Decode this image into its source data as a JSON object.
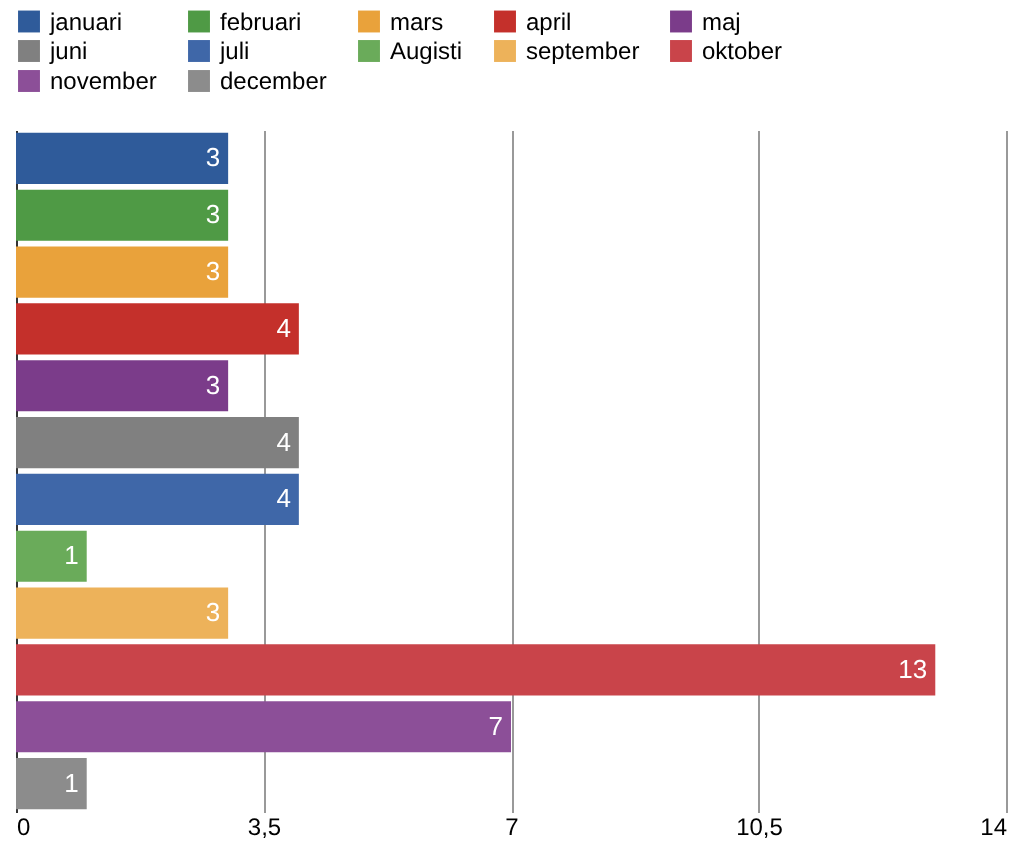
{
  "chart_data": {
    "type": "bar",
    "orientation": "horizontal",
    "categories": [
      null,
      null,
      null,
      null,
      null,
      null,
      null,
      null,
      null,
      null,
      null,
      null
    ],
    "series": [
      {
        "name": "januari",
        "color": "#2f5b9a",
        "values": [
          3,
          null,
          null,
          null,
          null,
          null,
          null,
          null,
          null,
          null,
          null,
          null
        ]
      },
      {
        "name": "februari",
        "color": "#4f9a45",
        "values": [
          null,
          3,
          null,
          null,
          null,
          null,
          null,
          null,
          null,
          null,
          null,
          null
        ]
      },
      {
        "name": "mars",
        "color": "#e9a23b",
        "values": [
          null,
          null,
          3,
          null,
          null,
          null,
          null,
          null,
          null,
          null,
          null,
          null
        ]
      },
      {
        "name": "april",
        "color": "#c4302b",
        "values": [
          null,
          null,
          null,
          4,
          null,
          null,
          null,
          null,
          null,
          null,
          null,
          null
        ]
      },
      {
        "name": "maj",
        "color": "#7b3c8a",
        "values": [
          null,
          null,
          null,
          null,
          3,
          null,
          null,
          null,
          null,
          null,
          null,
          null
        ]
      },
      {
        "name": "juni",
        "color": "#808080",
        "values": [
          null,
          null,
          null,
          null,
          null,
          4,
          null,
          null,
          null,
          null,
          null,
          null
        ]
      },
      {
        "name": "juli",
        "color": "#3f67a8",
        "values": [
          null,
          null,
          null,
          null,
          null,
          null,
          4,
          null,
          null,
          null,
          null,
          null
        ]
      },
      {
        "name": "Augisti",
        "color": "#6aab5a",
        "values": [
          null,
          null,
          null,
          null,
          null,
          null,
          null,
          1,
          null,
          null,
          null,
          null
        ]
      },
      {
        "name": "september",
        "color": "#edb25a",
        "values": [
          null,
          null,
          null,
          null,
          null,
          null,
          null,
          null,
          3,
          null,
          null,
          null
        ]
      },
      {
        "name": "oktober",
        "color": "#c9444a",
        "values": [
          null,
          null,
          null,
          null,
          null,
          null,
          null,
          null,
          null,
          13,
          null,
          null
        ]
      },
      {
        "name": "november",
        "color": "#8c4f98",
        "values": [
          null,
          null,
          null,
          null,
          null,
          null,
          null,
          null,
          null,
          null,
          7,
          null
        ]
      },
      {
        "name": "december",
        "color": "#8c8c8c",
        "values": [
          null,
          null,
          null,
          null,
          null,
          null,
          null,
          null,
          null,
          null,
          null,
          1
        ]
      }
    ],
    "xlim": [
      0,
      14
    ],
    "xticks": [
      0,
      {
        "value": 3.5,
        "label": "3,5"
      },
      7,
      {
        "value": 10.5,
        "label": "10,5"
      },
      14
    ],
    "grid": "x",
    "legend": "top",
    "tick_labels": "x",
    "data_labels": true
  }
}
